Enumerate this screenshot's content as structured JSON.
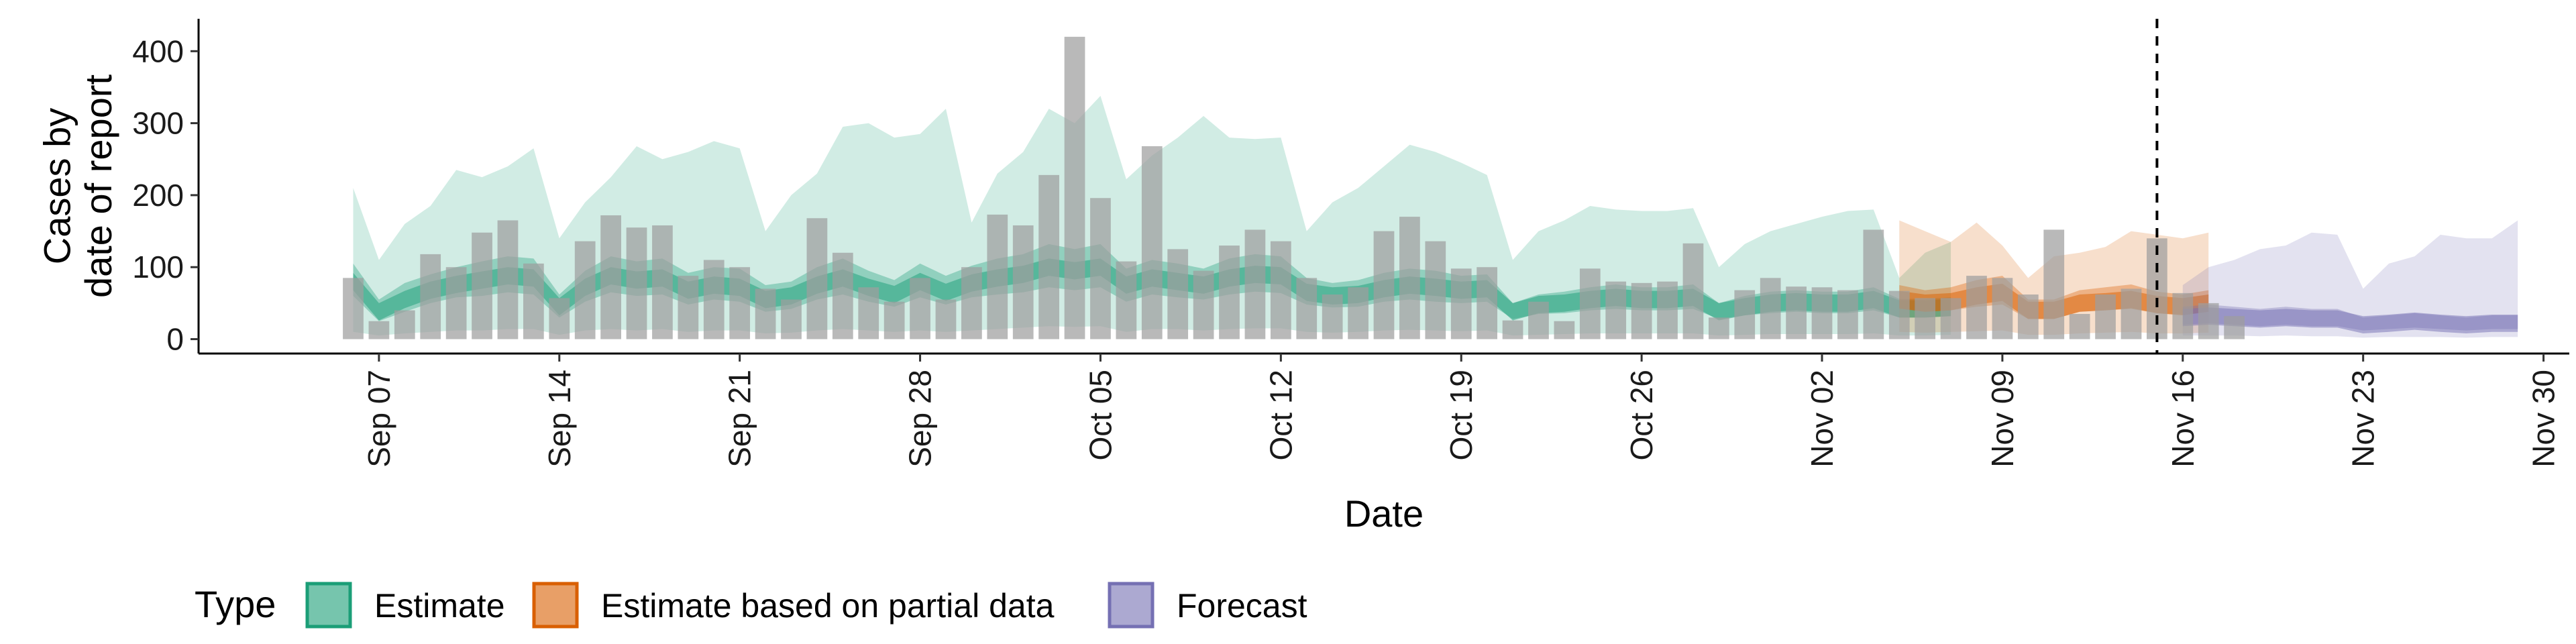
{
  "chart_data": {
    "type": "bar",
    "xlabel": "Date",
    "ylabel_lines": [
      "Cases by",
      "date of report"
    ],
    "x_range": [
      "2020-08-31",
      "2020-12-01"
    ],
    "ylim": [
      -20,
      445
    ],
    "y_ticks": [
      0,
      100,
      200,
      300,
      400
    ],
    "x_ticks": [
      {
        "date": "2020-09-07",
        "label": "Sep 07"
      },
      {
        "date": "2020-09-14",
        "label": "Sep 14"
      },
      {
        "date": "2020-09-21",
        "label": "Sep 21"
      },
      {
        "date": "2020-09-28",
        "label": "Sep 28"
      },
      {
        "date": "2020-10-05",
        "label": "Oct 05"
      },
      {
        "date": "2020-10-12",
        "label": "Oct 12"
      },
      {
        "date": "2020-10-19",
        "label": "Oct 19"
      },
      {
        "date": "2020-10-26",
        "label": "Oct 26"
      },
      {
        "date": "2020-11-02",
        "label": "Nov 02"
      },
      {
        "date": "2020-11-09",
        "label": "Nov 09"
      },
      {
        "date": "2020-11-16",
        "label": "Nov 16"
      },
      {
        "date": "2020-11-23",
        "label": "Nov 23"
      },
      {
        "date": "2020-11-30",
        "label": "Nov 30"
      }
    ],
    "vline_date": "2020-11-15",
    "colors": {
      "estimate": "#1b9e77",
      "partial": "#d95f02",
      "forecast": "#7570b3",
      "bars": "#9e9e9e"
    },
    "reported_cases": {
      "start_date": "2020-09-06",
      "values": [
        85,
        25,
        40,
        118,
        100,
        148,
        165,
        105,
        57,
        136,
        172,
        155,
        158,
        88,
        110,
        100,
        70,
        55,
        168,
        120,
        72,
        52,
        85,
        55,
        100,
        173,
        158,
        228,
        420,
        196,
        108,
        268,
        125,
        95,
        130,
        152,
        136,
        85,
        62,
        72,
        150,
        170,
        136,
        98,
        100,
        26,
        52,
        25,
        98,
        80,
        78,
        80,
        133,
        30,
        68,
        85,
        73,
        72,
        68,
        152,
        67,
        57,
        57,
        88,
        85,
        62,
        152,
        35,
        62,
        70,
        140,
        64,
        50,
        32
      ]
    },
    "estimate": {
      "start_date": "2020-09-06",
      "median": [
        80,
        38,
        55,
        68,
        76,
        82,
        88,
        85,
        45,
        72,
        88,
        82,
        85,
        68,
        75,
        72,
        55,
        60,
        75,
        85,
        72,
        62,
        80,
        65,
        78,
        85,
        90,
        100,
        95,
        100,
        75,
        85,
        80,
        75,
        85,
        90,
        88,
        65,
        60,
        62,
        70,
        75,
        72,
        68,
        70,
        38,
        48,
        50,
        55,
        58,
        55,
        55,
        58,
        38,
        45,
        50,
        52,
        50,
        50,
        55,
        42,
        42,
        44
      ],
      "ci20": [
        [
          60,
          105
        ],
        [
          25,
          55
        ],
        [
          38,
          78
        ],
        [
          50,
          90
        ],
        [
          58,
          100
        ],
        [
          60,
          108
        ],
        [
          65,
          115
        ],
        [
          62,
          112
        ],
        [
          30,
          62
        ],
        [
          52,
          95
        ],
        [
          65,
          115
        ],
        [
          60,
          108
        ],
        [
          62,
          112
        ],
        [
          48,
          92
        ],
        [
          55,
          100
        ],
        [
          52,
          98
        ],
        [
          38,
          75
        ],
        [
          42,
          80
        ],
        [
          55,
          100
        ],
        [
          62,
          112
        ],
        [
          52,
          95
        ],
        [
          45,
          82
        ],
        [
          58,
          105
        ],
        [
          48,
          88
        ],
        [
          58,
          102
        ],
        [
          62,
          112
        ],
        [
          65,
          118
        ],
        [
          72,
          132
        ],
        [
          68,
          125
        ],
        [
          72,
          132
        ],
        [
          52,
          98
        ],
        [
          62,
          110
        ],
        [
          58,
          105
        ],
        [
          55,
          98
        ],
        [
          62,
          112
        ],
        [
          66,
          118
        ],
        [
          64,
          115
        ],
        [
          48,
          85
        ],
        [
          44,
          78
        ],
        [
          45,
          82
        ],
        [
          52,
          92
        ],
        [
          55,
          98
        ],
        [
          52,
          95
        ],
        [
          50,
          88
        ],
        [
          52,
          90
        ],
        [
          28,
          50
        ],
        [
          35,
          62
        ],
        [
          36,
          66
        ],
        [
          40,
          72
        ],
        [
          42,
          76
        ],
        [
          40,
          72
        ],
        [
          40,
          72
        ],
        [
          42,
          76
        ],
        [
          28,
          50
        ],
        [
          33,
          60
        ],
        [
          36,
          66
        ],
        [
          38,
          68
        ],
        [
          36,
          66
        ],
        [
          36,
          66
        ],
        [
          40,
          72
        ],
        [
          30,
          56
        ],
        [
          30,
          56
        ],
        [
          32,
          58
        ]
      ],
      "ci90": [
        [
          10,
          210
        ],
        [
          5,
          110
        ],
        [
          8,
          160
        ],
        [
          10,
          185
        ],
        [
          12,
          235
        ],
        [
          12,
          225
        ],
        [
          14,
          240
        ],
        [
          14,
          265
        ],
        [
          6,
          140
        ],
        [
          12,
          190
        ],
        [
          14,
          225
        ],
        [
          12,
          268
        ],
        [
          14,
          250
        ],
        [
          10,
          260
        ],
        [
          12,
          275
        ],
        [
          12,
          265
        ],
        [
          8,
          150
        ],
        [
          9,
          200
        ],
        [
          12,
          230
        ],
        [
          14,
          295
        ],
        [
          12,
          300
        ],
        [
          10,
          280
        ],
        [
          12,
          285
        ],
        [
          10,
          320
        ],
        [
          12,
          162
        ],
        [
          14,
          230
        ],
        [
          16,
          260
        ],
        [
          18,
          320
        ],
        [
          17,
          300
        ],
        [
          18,
          338
        ],
        [
          10,
          222
        ],
        [
          14,
          255
        ],
        [
          14,
          280
        ],
        [
          12,
          310
        ],
        [
          14,
          280
        ],
        [
          15,
          278
        ],
        [
          15,
          280
        ],
        [
          10,
          150
        ],
        [
          9,
          190
        ],
        [
          10,
          210
        ],
        [
          12,
          240
        ],
        [
          13,
          270
        ],
        [
          12,
          260
        ],
        [
          11,
          245
        ],
        [
          12,
          228
        ],
        [
          5,
          110
        ],
        [
          6,
          150
        ],
        [
          7,
          165
        ],
        [
          8,
          185
        ],
        [
          8,
          180
        ],
        [
          8,
          178
        ],
        [
          8,
          178
        ],
        [
          8,
          182
        ],
        [
          5,
          100
        ],
        [
          6,
          132
        ],
        [
          7,
          150
        ],
        [
          7,
          160
        ],
        [
          7,
          170
        ],
        [
          7,
          178
        ],
        [
          8,
          180
        ],
        [
          5,
          85
        ],
        [
          5,
          120
        ],
        [
          6,
          135
        ]
      ]
    },
    "partial_estimate": {
      "start_date": "2020-11-05",
      "median": [
        55,
        50,
        52,
        60,
        65,
        40,
        40,
        50,
        52,
        55,
        48,
        45,
        50
      ],
      "ci20": [
        [
          42,
          75
        ],
        [
          38,
          68
        ],
        [
          40,
          72
        ],
        [
          45,
          82
        ],
        [
          48,
          88
        ],
        [
          28,
          55
        ],
        [
          28,
          55
        ],
        [
          38,
          68
        ],
        [
          40,
          72
        ],
        [
          42,
          76
        ],
        [
          36,
          66
        ],
        [
          34,
          62
        ],
        [
          38,
          68
        ]
      ],
      "ci90": [
        [
          10,
          165
        ],
        [
          9,
          150
        ],
        [
          10,
          135
        ],
        [
          11,
          162
        ],
        [
          12,
          130
        ],
        [
          6,
          85
        ],
        [
          6,
          115
        ],
        [
          8,
          120
        ],
        [
          9,
          128
        ],
        [
          10,
          150
        ],
        [
          8,
          145
        ],
        [
          8,
          140
        ],
        [
          9,
          148
        ]
      ]
    },
    "forecast": {
      "start_date": "2020-11-16",
      "median": [
        30,
        32,
        30,
        28,
        30,
        28,
        28,
        20,
        22,
        25,
        22,
        20,
        22,
        22
      ],
      "ci20": [
        [
          20,
          45
        ],
        [
          22,
          48
        ],
        [
          20,
          45
        ],
        [
          18,
          42
        ],
        [
          20,
          45
        ],
        [
          18,
          42
        ],
        [
          18,
          42
        ],
        [
          12,
          30
        ],
        [
          14,
          33
        ],
        [
          16,
          36
        ],
        [
          14,
          33
        ],
        [
          12,
          30
        ],
        [
          14,
          33
        ],
        [
          14,
          33
        ]
      ],
      "ci90": [
        [
          5,
          75
        ],
        [
          5,
          100
        ],
        [
          5,
          110
        ],
        [
          4,
          125
        ],
        [
          5,
          130
        ],
        [
          4,
          148
        ],
        [
          4,
          145
        ],
        [
          2,
          70
        ],
        [
          3,
          105
        ],
        [
          3,
          115
        ],
        [
          3,
          145
        ],
        [
          2,
          140
        ],
        [
          3,
          140
        ],
        [
          3,
          165
        ]
      ]
    },
    "legend": {
      "title": "Type",
      "items": [
        {
          "label": "Estimate",
          "color": "#1b9e77"
        },
        {
          "label": "Estimate based on partial data",
          "color": "#d95f02"
        },
        {
          "label": "Forecast",
          "color": "#7570b3"
        }
      ]
    }
  }
}
